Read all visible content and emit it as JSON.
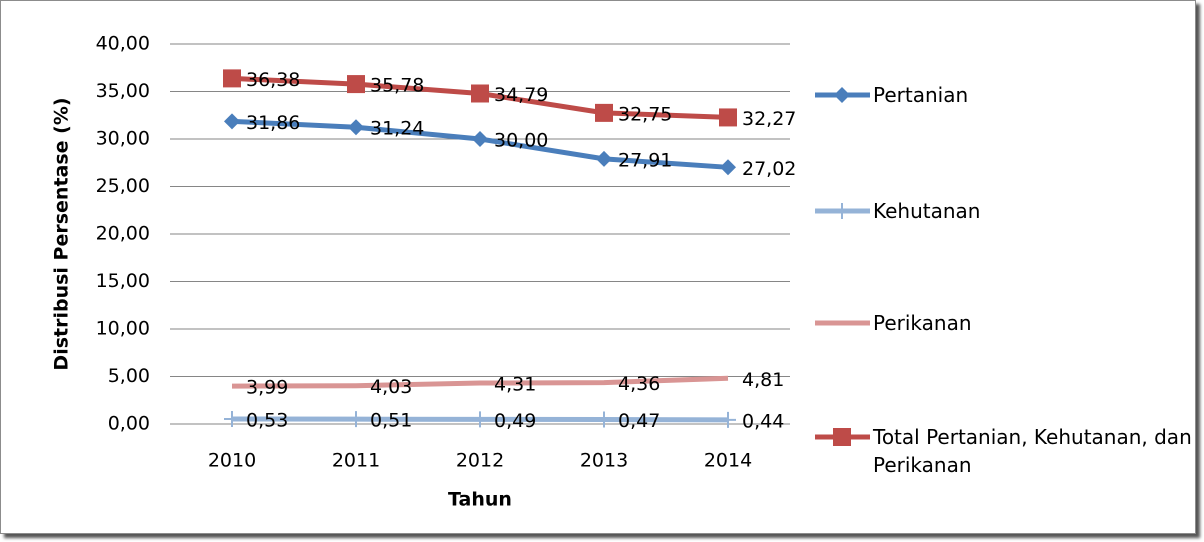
{
  "chart_data": {
    "type": "line",
    "y_label": "Distribusi Persentase (%)",
    "x_label": "Tahun",
    "categories": [
      "2010",
      "2011",
      "2012",
      "2013",
      "2014"
    ],
    "series": [
      {
        "name": "Pertanian",
        "color": "#4a7ebb",
        "marker": "diamond",
        "values": [
          31.86,
          31.24,
          30.0,
          27.91,
          27.02
        ],
        "value_labels": [
          "31,86",
          "31,24",
          "30,00",
          "27,91",
          "27,02"
        ]
      },
      {
        "name": "Kehutanan",
        "color": "#95b3d7",
        "marker": "plus",
        "values": [
          0.53,
          0.51,
          0.49,
          0.47,
          0.44
        ],
        "value_labels": [
          "0,53",
          "0,51",
          "0,49",
          "0,47",
          "0,44"
        ]
      },
      {
        "name": "Perikanan",
        "color": "#d99594",
        "marker": "none",
        "values": [
          3.99,
          4.03,
          4.31,
          4.36,
          4.81
        ],
        "value_labels": [
          "3,99",
          "4,03",
          "4,31",
          "4,36",
          "4,81"
        ]
      },
      {
        "name": "Total Pertanian, Kehutanan, dan Perikanan",
        "color": "#be4b48",
        "marker": "square",
        "values": [
          36.38,
          35.78,
          34.79,
          32.75,
          32.27
        ],
        "value_labels": [
          "36,38",
          "35,78",
          "34,79",
          "32,75",
          "32,27"
        ]
      }
    ],
    "ylim": [
      0,
      40
    ],
    "yticks": [
      {
        "value": 0,
        "label": "0,00"
      },
      {
        "value": 5,
        "label": "5,00"
      },
      {
        "value": 10,
        "label": "10,00"
      },
      {
        "value": 15,
        "label": "15,00"
      },
      {
        "value": 20,
        "label": "20,00"
      },
      {
        "value": 25,
        "label": "25,00"
      },
      {
        "value": 30,
        "label": "30,00"
      },
      {
        "value": 35,
        "label": "35,00"
      },
      {
        "value": 40,
        "label": "40,00"
      }
    ],
    "grid": true,
    "legend": "right"
  }
}
